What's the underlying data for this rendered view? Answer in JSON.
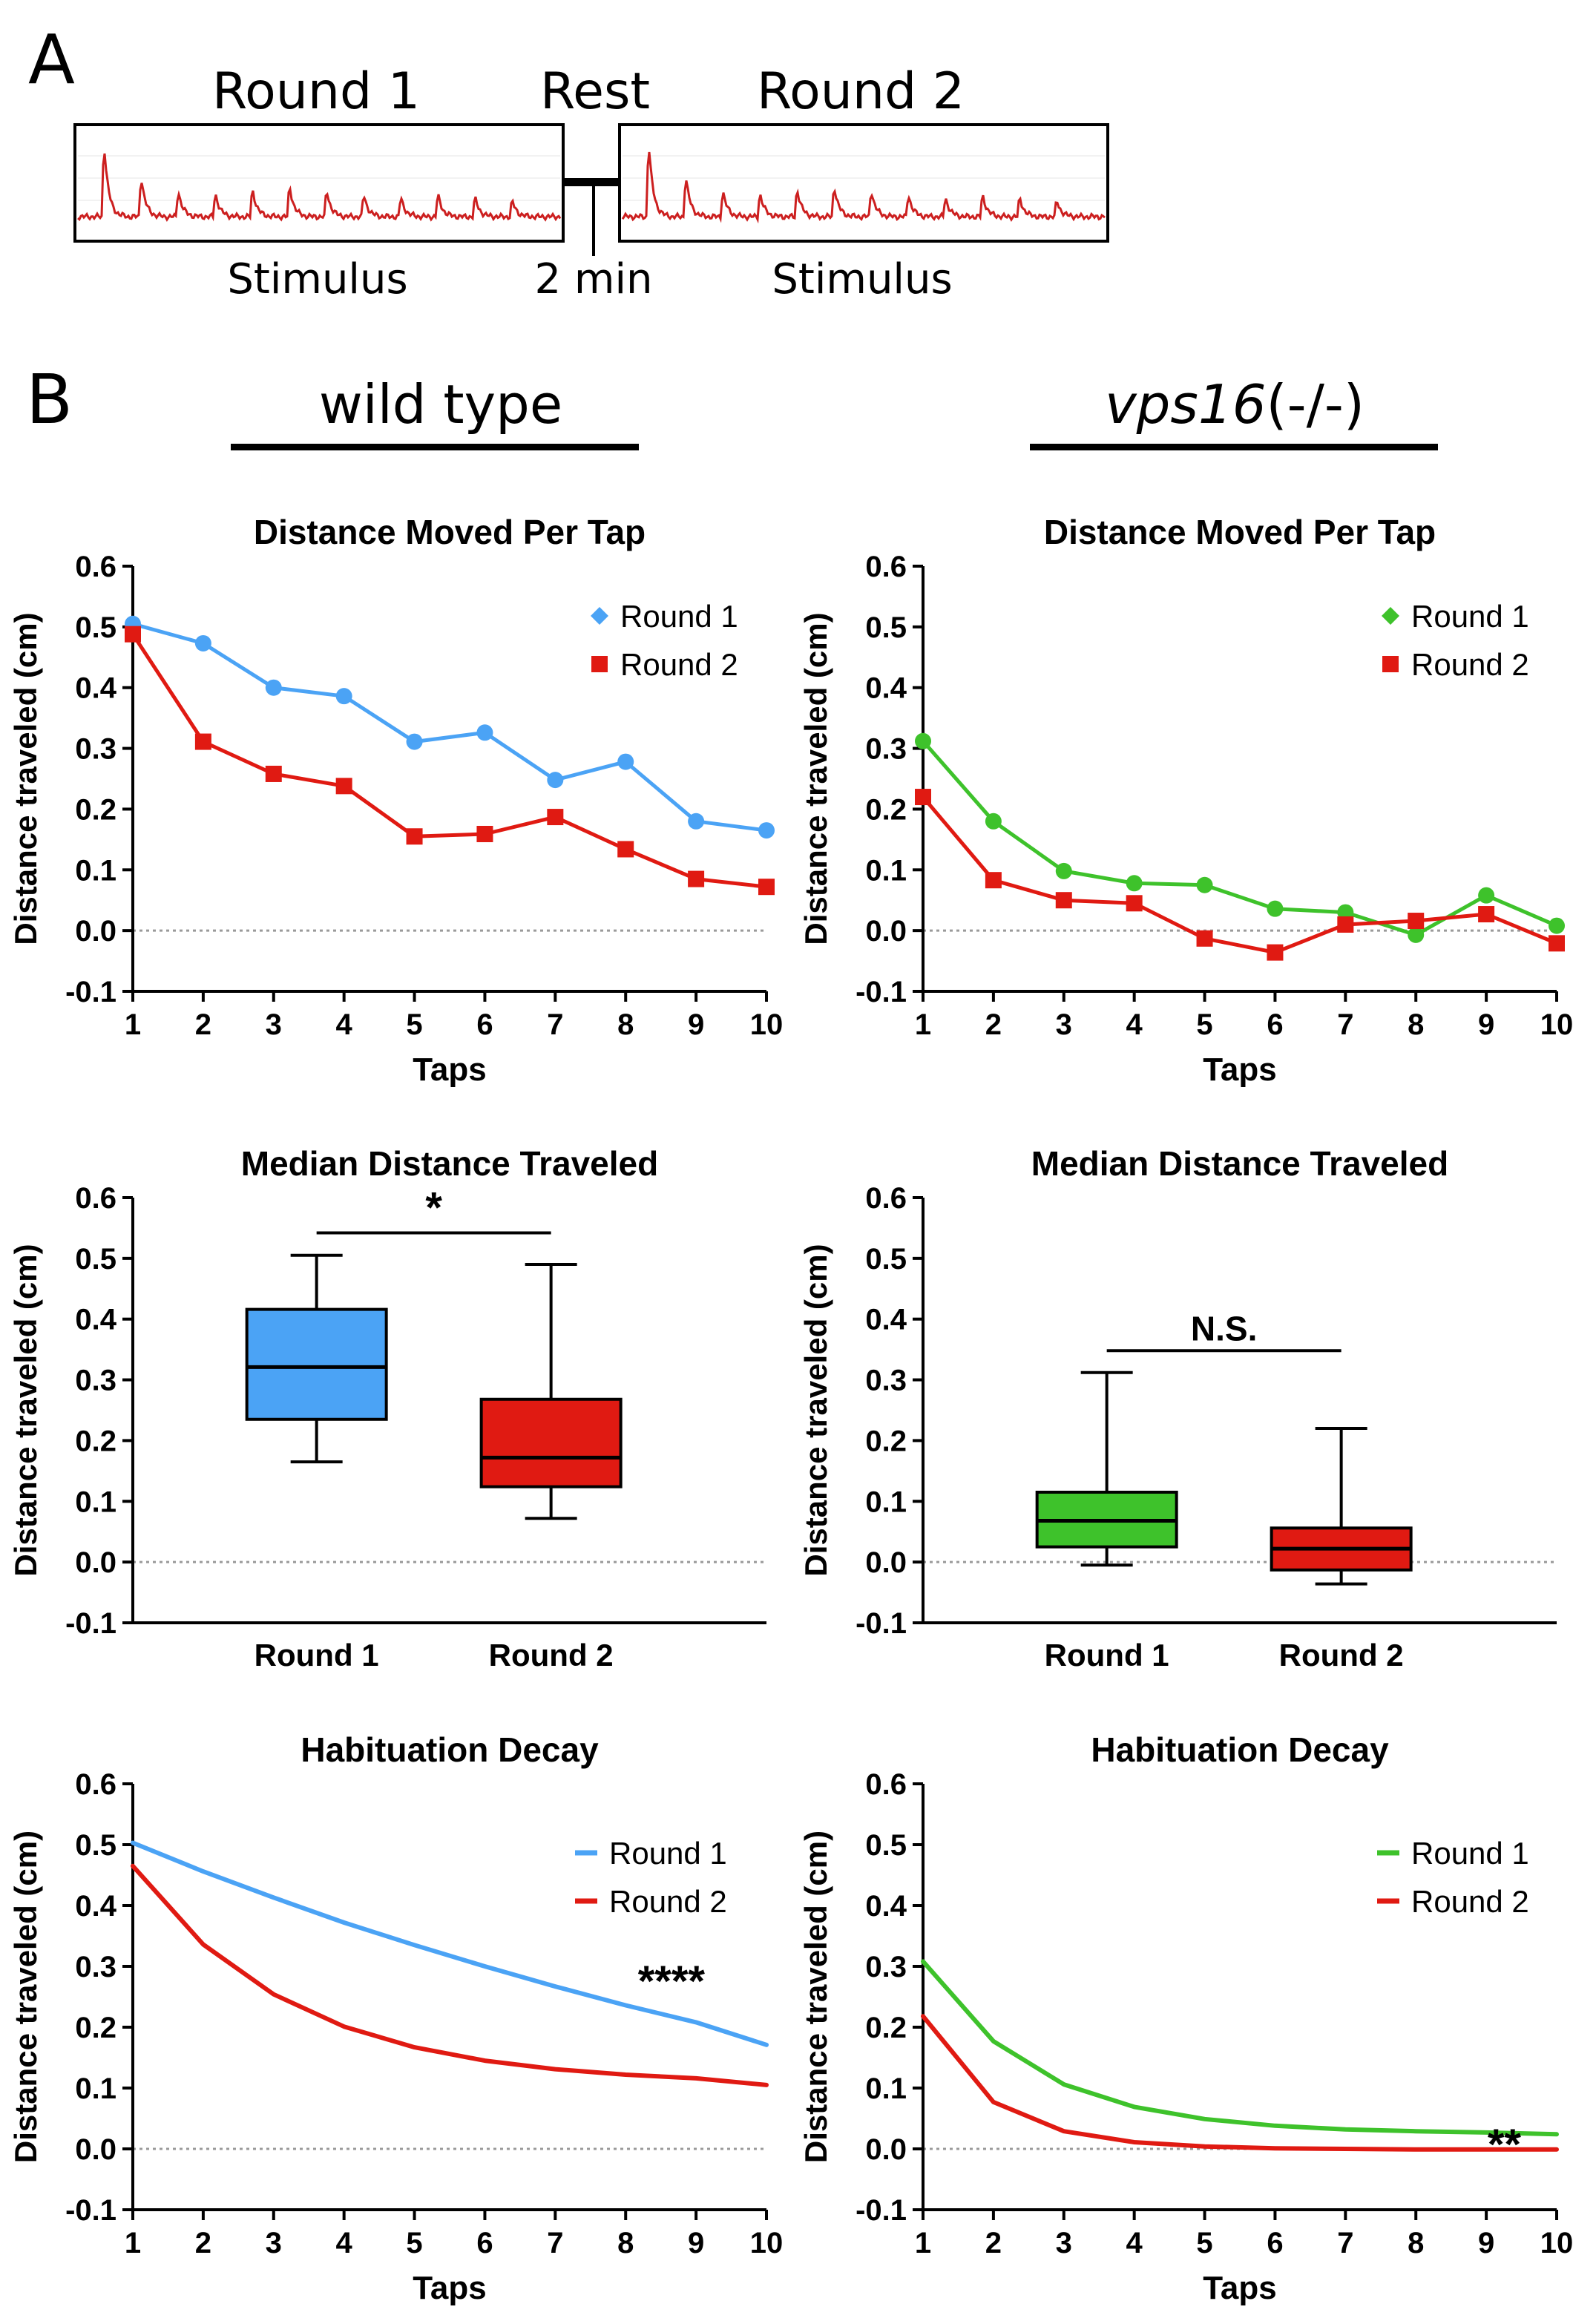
{
  "figure": {
    "panel_a": {
      "label": "A",
      "round1_label": "Round 1",
      "rest_label": "Rest",
      "round2_label": "Round 2",
      "stimulus_label": "Stimulus",
      "rest_duration": "2 min",
      "trace_color": "#cc1f1f"
    },
    "panel_b": {
      "label": "B",
      "wild_type_header": "wild type",
      "mutant_gene": "vps16",
      "mutant_genotype": "(-/-)"
    }
  },
  "colors": {
    "wt_round1": "#4ba3f5",
    "mut_round1": "#3ec22b",
    "round2": "#e01a12",
    "axis": "#000000",
    "zero_line": "#9a9a9a"
  },
  "chart_data": [
    {
      "id": "wt-line",
      "type": "line",
      "title": "Distance Moved Per Tap",
      "xlabel": "Taps",
      "ylabel": "Distance traveled (cm)",
      "xlim": [
        1,
        10
      ],
      "ylim": [
        -0.1,
        0.6
      ],
      "yticks": [
        "0.6",
        "0.5",
        "0.4",
        "0.3",
        "0.2",
        "0.1",
        "0.0",
        "-0.1"
      ],
      "xticks": [
        "1",
        "2",
        "3",
        "4",
        "5",
        "6",
        "7",
        "8",
        "9",
        "10"
      ],
      "legend": "top-right",
      "series": [
        {
          "name": "Round 1",
          "color": "#4ba3f5",
          "marker": "circle",
          "x": [
            1,
            2,
            3,
            4,
            5,
            6,
            7,
            8,
            9,
            10
          ],
          "values": [
            0.505,
            0.473,
            0.4,
            0.386,
            0.311,
            0.326,
            0.248,
            0.278,
            0.18,
            0.165
          ]
        },
        {
          "name": "Round 2",
          "color": "#e01a12",
          "marker": "square",
          "x": [
            1,
            2,
            3,
            4,
            5,
            6,
            7,
            8,
            9,
            10
          ],
          "values": [
            0.488,
            0.311,
            0.258,
            0.238,
            0.155,
            0.159,
            0.187,
            0.134,
            0.085,
            0.072
          ]
        }
      ]
    },
    {
      "id": "mut-line",
      "type": "line",
      "title": "Distance Moved Per Tap",
      "xlabel": "Taps",
      "ylabel": "Distance traveled (cm)",
      "xlim": [
        1,
        10
      ],
      "ylim": [
        -0.1,
        0.6
      ],
      "yticks": [
        "0.6",
        "0.5",
        "0.4",
        "0.3",
        "0.2",
        "0.1",
        "0.0",
        "-0.1"
      ],
      "xticks": [
        "1",
        "2",
        "3",
        "4",
        "5",
        "6",
        "7",
        "8",
        "9",
        "10"
      ],
      "legend": "top-right",
      "series": [
        {
          "name": "Round 1",
          "color": "#3ec22b",
          "marker": "circle",
          "x": [
            1,
            2,
            3,
            4,
            5,
            6,
            7,
            8,
            9,
            10
          ],
          "values": [
            0.312,
            0.18,
            0.098,
            0.078,
            0.075,
            0.036,
            0.03,
            -0.007,
            0.058,
            0.008
          ]
        },
        {
          "name": "Round 2",
          "color": "#e01a12",
          "marker": "square",
          "x": [
            1,
            2,
            3,
            4,
            5,
            6,
            7,
            8,
            9,
            10
          ],
          "values": [
            0.22,
            0.083,
            0.05,
            0.045,
            -0.013,
            -0.036,
            0.01,
            0.016,
            0.027,
            -0.021
          ]
        }
      ]
    },
    {
      "id": "wt-box",
      "type": "box",
      "title": "Median Distance Traveled",
      "ylabel": "Distance traveled (cm)",
      "ylim": [
        -0.1,
        0.6
      ],
      "yticks": [
        "0.6",
        "0.5",
        "0.4",
        "0.3",
        "0.2",
        "0.1",
        "0.0",
        "-0.1"
      ],
      "categories": [
        "Round 1",
        "Round 2"
      ],
      "boxes": [
        {
          "name": "Round 1",
          "color": "#4ba3f5",
          "min": 0.165,
          "q1": 0.235,
          "median": 0.321,
          "q3": 0.416,
          "max": 0.505
        },
        {
          "name": "Round 2",
          "color": "#e01a12",
          "min": 0.072,
          "q1": 0.124,
          "median": 0.172,
          "q3": 0.268,
          "max": 0.49
        }
      ],
      "significance": "*",
      "significance_y": 0.542
    },
    {
      "id": "mut-box",
      "type": "box",
      "title": "Median Distance Traveled",
      "ylabel": "Distance traveled (cm)",
      "ylim": [
        -0.1,
        0.6
      ],
      "yticks": [
        "0.6",
        "0.5",
        "0.4",
        "0.3",
        "0.2",
        "0.1",
        "0.0",
        "-0.1"
      ],
      "categories": [
        "Round 1",
        "Round 2"
      ],
      "boxes": [
        {
          "name": "Round 1",
          "color": "#3ec22b",
          "min": -0.005,
          "q1": 0.025,
          "median": 0.068,
          "q3": 0.115,
          "max": 0.312
        },
        {
          "name": "Round 2",
          "color": "#e01a12",
          "min": -0.036,
          "q1": -0.013,
          "median": 0.022,
          "q3": 0.056,
          "max": 0.22
        }
      ],
      "significance": "N.S.",
      "significance_y": 0.348
    },
    {
      "id": "wt-decay",
      "type": "line",
      "title": "Habituation Decay",
      "xlabel": "Taps",
      "ylabel": "Distance traveled (cm)",
      "xlim": [
        1,
        10
      ],
      "ylim": [
        -0.1,
        0.6
      ],
      "yticks": [
        "0.6",
        "0.5",
        "0.4",
        "0.3",
        "0.2",
        "0.1",
        "0.0",
        "-0.1"
      ],
      "xticks": [
        "1",
        "2",
        "3",
        "4",
        "5",
        "6",
        "7",
        "8",
        "9",
        "10"
      ],
      "legend": "top-right",
      "significance": "****",
      "series": [
        {
          "name": "Round 1",
          "color": "#4ba3f5",
          "marker": "none",
          "x": [
            1,
            2,
            3,
            4,
            5,
            6,
            7,
            8,
            9,
            10
          ],
          "values": [
            0.503,
            0.456,
            0.413,
            0.372,
            0.335,
            0.3,
            0.267,
            0.236,
            0.208,
            0.171
          ]
        },
        {
          "name": "Round 2",
          "color": "#e01a12",
          "marker": "none",
          "x": [
            1,
            2,
            3,
            4,
            5,
            6,
            7,
            8,
            9,
            10
          ],
          "values": [
            0.465,
            0.336,
            0.254,
            0.201,
            0.167,
            0.145,
            0.131,
            0.122,
            0.116,
            0.105
          ]
        }
      ]
    },
    {
      "id": "mut-decay",
      "type": "line",
      "title": "Habituation Decay",
      "xlabel": "Taps",
      "ylabel": "Distance traveled (cm)",
      "xlim": [
        1,
        10
      ],
      "ylim": [
        -0.1,
        0.6
      ],
      "yticks": [
        "0.6",
        "0.5",
        "0.4",
        "0.3",
        "0.2",
        "0.1",
        "0.0",
        "-0.1"
      ],
      "xticks": [
        "1",
        "2",
        "3",
        "4",
        "5",
        "6",
        "7",
        "8",
        "9",
        "10"
      ],
      "legend": "top-right",
      "significance": "**",
      "series": [
        {
          "name": "Round 1",
          "color": "#3ec22b",
          "marker": "none",
          "x": [
            1,
            2,
            3,
            4,
            5,
            6,
            7,
            8,
            9,
            10
          ],
          "values": [
            0.308,
            0.177,
            0.106,
            0.069,
            0.049,
            0.038,
            0.032,
            0.029,
            0.027,
            0.024
          ]
        },
        {
          "name": "Round 2",
          "color": "#e01a12",
          "marker": "none",
          "x": [
            1,
            2,
            3,
            4,
            5,
            6,
            7,
            8,
            9,
            10
          ],
          "values": [
            0.218,
            0.077,
            0.029,
            0.011,
            0.004,
            0.001,
            0.0,
            -0.001,
            -0.001,
            -0.001
          ]
        }
      ]
    }
  ]
}
